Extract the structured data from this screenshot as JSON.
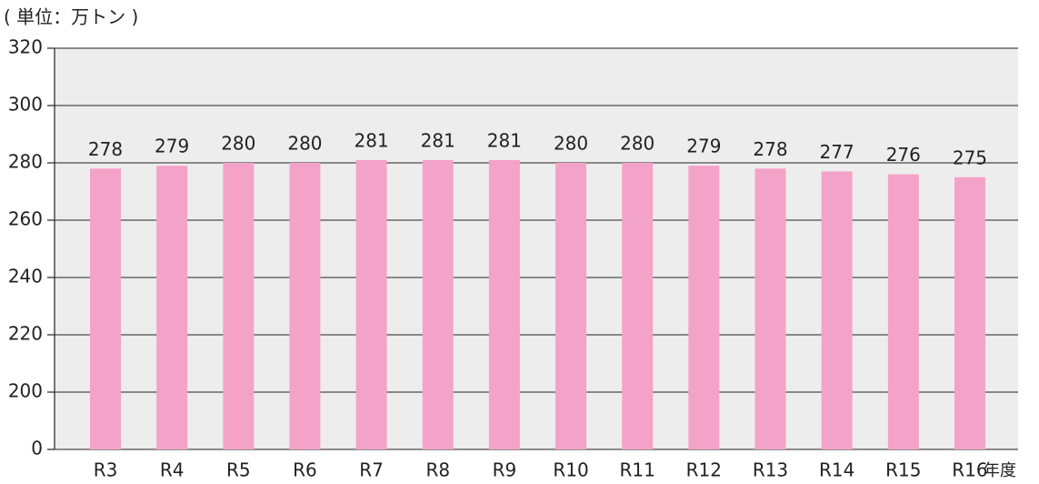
{
  "chart_data": {
    "type": "bar",
    "title": "( 単位：万トン )",
    "x_label": "年度",
    "categories": [
      "R3",
      "R4",
      "R5",
      "R6",
      "R7",
      "R8",
      "R9",
      "R10",
      "R11",
      "R12",
      "R13",
      "R14",
      "R15",
      "R16"
    ],
    "values": [
      278,
      279,
      280,
      280,
      281,
      281,
      281,
      280,
      280,
      279,
      278,
      277,
      276,
      275
    ],
    "color": "#f4a3c8",
    "ylim": [
      0,
      320
    ],
    "yticks": [
      0,
      200,
      220,
      240,
      260,
      280,
      300,
      320
    ],
    "grid": true
  }
}
